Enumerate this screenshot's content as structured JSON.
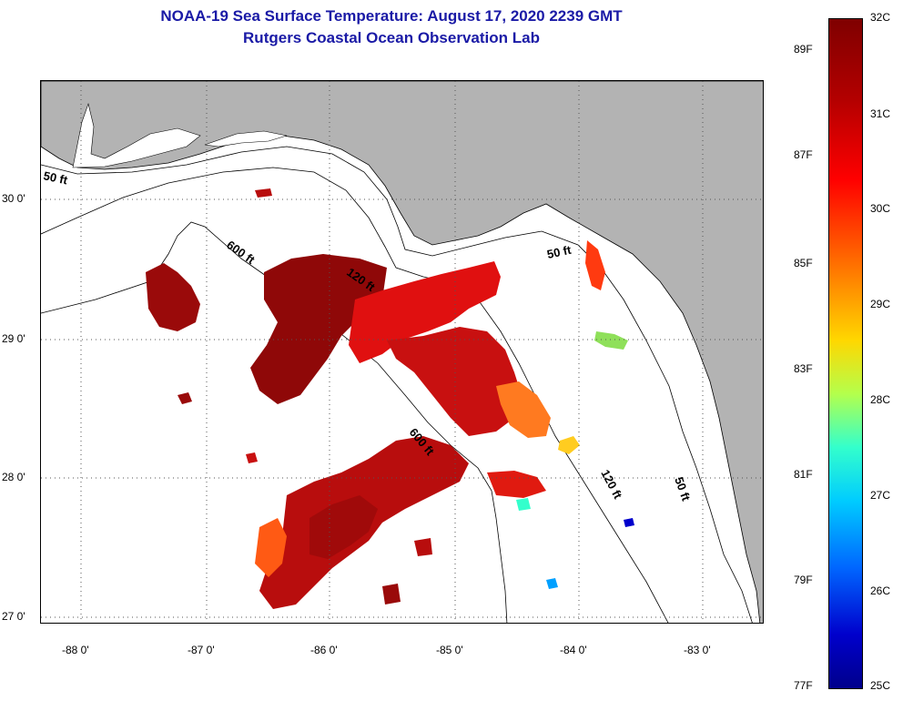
{
  "header": {
    "title": "NOAA-19 Sea Surface Temperature:  August 17, 2020 2239 GMT",
    "subtitle": "Rutgers Coastal Ocean Observation Lab"
  },
  "map": {
    "lon_range": [
      -88.33,
      -82.55
    ],
    "lat_range": [
      26.95,
      30.85
    ],
    "lat_ticks": [
      {
        "value": 30,
        "label": "30 0'"
      },
      {
        "value": 29,
        "label": "29 0'"
      },
      {
        "value": 28,
        "label": "28 0'"
      },
      {
        "value": 27,
        "label": "27 0'"
      }
    ],
    "lon_ticks": [
      {
        "value": -88,
        "label": "-88 0'"
      },
      {
        "value": -87,
        "label": "-87 0'"
      },
      {
        "value": -86,
        "label": "-86 0'"
      },
      {
        "value": -85,
        "label": "-85 0'"
      },
      {
        "value": -84,
        "label": "-84 0'"
      },
      {
        "value": -83,
        "label": "-83 0'"
      }
    ],
    "contour_labels": [
      "50 ft",
      "600 ft",
      "120 ft",
      "50 ft",
      "600 ft",
      "120 ft",
      "50 ft"
    ],
    "colors": {
      "land": "#b3b3b3",
      "water_no_data": "#ffffff",
      "grid": "#555555"
    }
  },
  "colorbar": {
    "range_c": [
      25,
      32
    ],
    "celsius_labels": [
      "32C",
      "31C",
      "30C",
      "29C",
      "28C",
      "27C",
      "26C",
      "25C"
    ],
    "fahrenheit_labels": [
      "89F",
      "87F",
      "85F",
      "83F",
      "81F",
      "79F",
      "77F"
    ]
  }
}
